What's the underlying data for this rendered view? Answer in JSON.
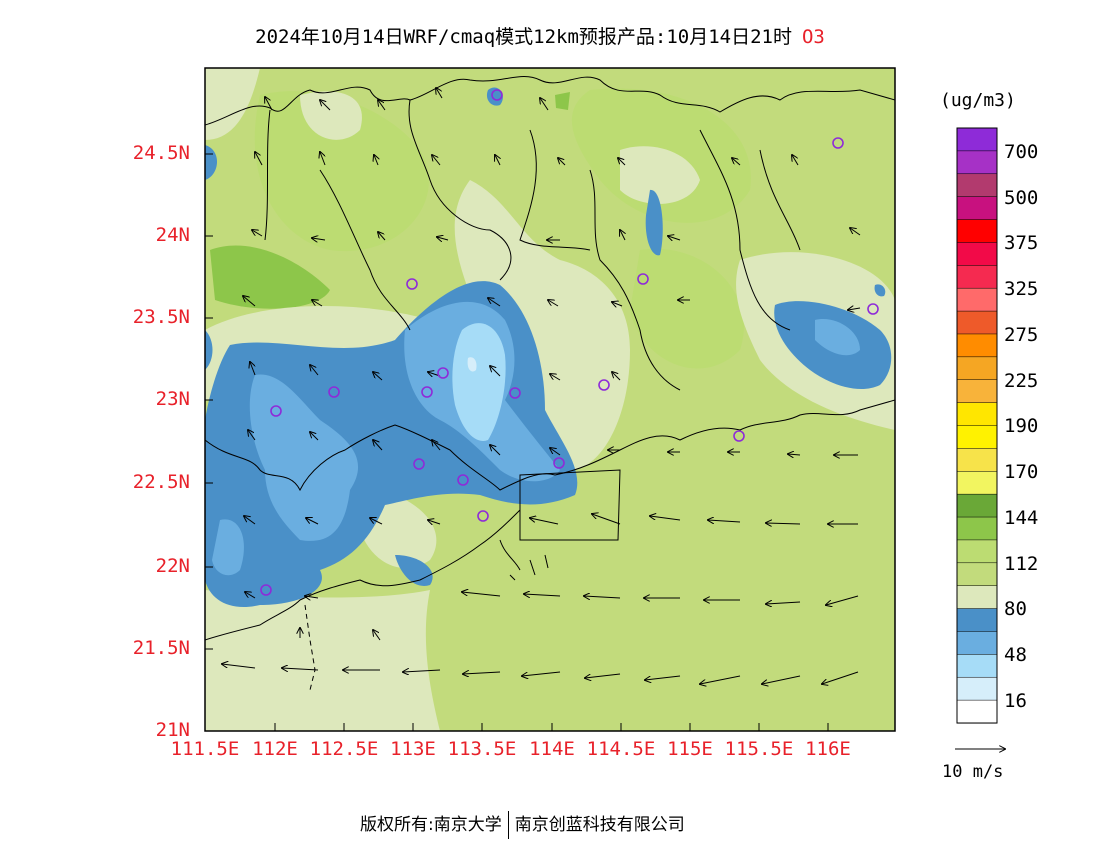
{
  "title": "2024年10月14日WRF/cmaq模式12km预报产品:10月14日21时",
  "species": "O3",
  "units": "(ug/m3)",
  "lat_ticks": [
    "24.5N",
    "24N",
    "23.5N",
    "23N",
    "22.5N",
    "22N",
    "21.5N",
    "21N"
  ],
  "lon_ticks": [
    "111.5E",
    "112E",
    "112.5E",
    "113E",
    "113.5E",
    "114E",
    "114.5E",
    "115E",
    "115.5E",
    "116E"
  ],
  "legend": {
    "labels": [
      "700",
      "500",
      "375",
      "325",
      "275",
      "225",
      "190",
      "170",
      "144",
      "112",
      "80",
      "48",
      "16"
    ],
    "colors": [
      "#8e2bd8",
      "#a631c6",
      "#b23a6e",
      "#c8117f",
      "#ff0000",
      "#f20a48",
      "#f52a50",
      "#ff6a6a",
      "#ee5a2a",
      "#ff8c00",
      "#f5a623",
      "#f8b33a",
      "#ffe600",
      "#fff200",
      "#f7e34a",
      "#f2f560",
      "#6aa837",
      "#8dc64a",
      "#bcdc72",
      "#c2db7c",
      "#dde8bc",
      "#4a90c8",
      "#6aaee0",
      "#a6dcf7",
      "#d6eefa",
      "#ffffff"
    ]
  },
  "reference_vector": "10 m/s",
  "footer": {
    "left": "版权所有:南京大学",
    "right": "南京创蓝科技有限公司"
  }
}
